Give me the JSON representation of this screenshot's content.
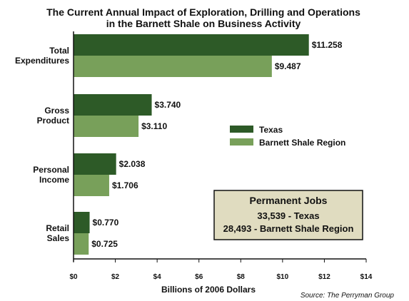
{
  "chart_data": {
    "type": "bar",
    "orientation": "horizontal",
    "title": [
      "The Current Annual Impact of Exploration, Drilling and Operations",
      "in the Barnett Shale on Business Activity"
    ],
    "categories": [
      [
        "Total",
        "Expenditures"
      ],
      [
        "Gross",
        "Product"
      ],
      [
        "Personal",
        "Income"
      ],
      [
        "Retail",
        "Sales"
      ]
    ],
    "series": [
      {
        "name": "Texas",
        "color": "#2d5a27",
        "values": [
          11.258,
          3.74,
          2.038,
          0.77
        ],
        "labels": [
          "$11.258",
          "$3.740",
          "$2.038",
          "$0.770"
        ]
      },
      {
        "name": "Barnett Shale Region",
        "color": "#78a05a",
        "values": [
          9.487,
          3.11,
          1.706,
          0.725
        ],
        "labels": [
          "$9.487",
          "$3.110",
          "$1.706",
          "$0.725"
        ]
      }
    ],
    "xlabel": "Billions of 2006 Dollars",
    "xlim": [
      0,
      14
    ],
    "xticks": [
      0,
      2,
      4,
      6,
      8,
      10,
      12,
      14
    ],
    "xtick_labels": [
      "$0",
      "$2",
      "$4",
      "$6",
      "$8",
      "$10",
      "$12",
      "$14"
    ],
    "legend_position": "right-middle",
    "grid": false
  },
  "info_box": {
    "title": "Permanent Jobs",
    "lines": [
      "33,539 - Texas",
      "28,493 - Barnett Shale Region"
    ],
    "background": "#e0dcc0"
  },
  "source": "Source: The Perryman Group"
}
